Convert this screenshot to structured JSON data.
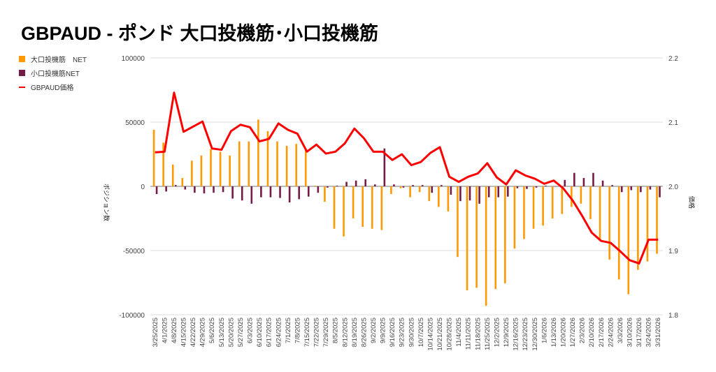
{
  "title": "GBPAUD - ポンド 大口投機筋･小口投機筋",
  "chart_data": {
    "type": "bar+line",
    "title": "GBPAUD - ポンド 大口投機筋･小口投機筋",
    "ylabel_left": "ポジション数",
    "ylabel_right": "価格",
    "ylim_left": [
      -100000,
      100000
    ],
    "yticks_left": [
      "100000",
      "50000",
      "0",
      "-50000",
      "-100000"
    ],
    "ylim_right": [
      1.8,
      2.2
    ],
    "yticks_right": [
      "2.2",
      "2.1",
      "2.0",
      "1.9",
      "1.8"
    ],
    "grid": true,
    "legend_position": "top-left",
    "colors": {
      "large": "#FF9900",
      "small": "#741B47",
      "price": "#FF0000"
    },
    "categories": [
      "3/25/2025",
      "4/1/2025",
      "4/8/2025",
      "4/15/2025",
      "4/22/2025",
      "4/29/2025",
      "5/6/2025",
      "5/13/2025",
      "5/20/2025",
      "5/27/2025",
      "6/3/2025",
      "6/10/2025",
      "6/17/2025",
      "6/24/2025",
      "7/1/2025",
      "7/8/2025",
      "7/15/2025",
      "7/22/2025",
      "7/29/2025",
      "8/5/2025",
      "8/12/2025",
      "8/19/2025",
      "8/26/2025",
      "9/2/2025",
      "9/9/2025",
      "9/16/2025",
      "9/23/2025",
      "9/30/2025",
      "10/7/2025",
      "10/14/2025",
      "10/21/2025",
      "10/28/2025",
      "11/4/2025",
      "11/11/2025",
      "11/18/2025",
      "11/25/2025",
      "12/2/2025",
      "12/9/2025",
      "12/16/2025",
      "12/23/2025",
      "12/30/2025",
      "1/6/2026",
      "1/13/2026",
      "1/20/2026",
      "1/27/2026",
      "2/3/2026",
      "2/10/2026",
      "2/17/2026",
      "2/24/2026",
      "3/3/2026",
      "3/10/2026",
      "3/17/2026",
      "3/24/2026",
      "3/31/2026"
    ],
    "series": [
      {
        "name": "大口投機筋　NET",
        "type": "bar",
        "axis": "left",
        "values": [
          44000,
          34000,
          17000,
          6500,
          20000,
          24000,
          29000,
          27000,
          24000,
          35000,
          35000,
          52000,
          43000,
          35000,
          31500,
          33000,
          29000,
          500,
          -12000,
          -33000,
          -39000,
          -25000,
          -31500,
          -33000,
          -34000,
          -6000,
          -1500,
          -8500,
          -4500,
          -11500,
          -16000,
          -19500,
          -55000,
          -81000,
          -79000,
          -93000,
          -80000,
          -75500,
          -48500,
          -41000,
          -33000,
          -30500,
          -25000,
          -21500,
          -16000,
          -13500,
          -25500,
          -42500,
          -57000,
          -72500,
          -84000,
          -65000,
          -58500,
          -52500
        ]
      },
      {
        "name": "小口投機筋NET",
        "type": "bar",
        "axis": "left",
        "values": [
          -6000,
          -4000,
          1000,
          -2500,
          -5000,
          -5500,
          -5000,
          -4500,
          -9500,
          -11000,
          -13500,
          -8500,
          -8500,
          -9000,
          -12500,
          -10000,
          -8000,
          -5000,
          -1000,
          500,
          3500,
          4500,
          5500,
          1500,
          29500,
          1500,
          -1000,
          1000,
          1000,
          -5000,
          1000,
          -6500,
          -11500,
          -11000,
          -13500,
          -8500,
          -8500,
          -8000,
          -1500,
          -2000,
          -1000,
          500,
          0,
          5000,
          10500,
          6500,
          10500,
          4500,
          1000,
          -4500,
          -3000,
          -4500,
          -2500,
          -8500
        ]
      },
      {
        "name": "GBPAUD価格",
        "type": "line",
        "axis": "right",
        "values": [
          2.053,
          2.054,
          2.146,
          2.085,
          2.093,
          2.101,
          2.059,
          2.057,
          2.086,
          2.096,
          2.092,
          2.07,
          2.074,
          2.098,
          2.088,
          2.082,
          2.054,
          2.065,
          2.051,
          2.054,
          2.067,
          2.09,
          2.075,
          2.054,
          2.054,
          2.041,
          2.05,
          2.033,
          2.038,
          2.052,
          2.061,
          2.015,
          2.007,
          2.015,
          2.02,
          2.036,
          2.014,
          2.003,
          2.025,
          2.017,
          2.012,
          2.004,
          2.009,
          1.997,
          1.978,
          1.954,
          1.928,
          1.915,
          1.912,
          1.899,
          1.885,
          1.88,
          1.917,
          1.917
        ]
      }
    ]
  }
}
